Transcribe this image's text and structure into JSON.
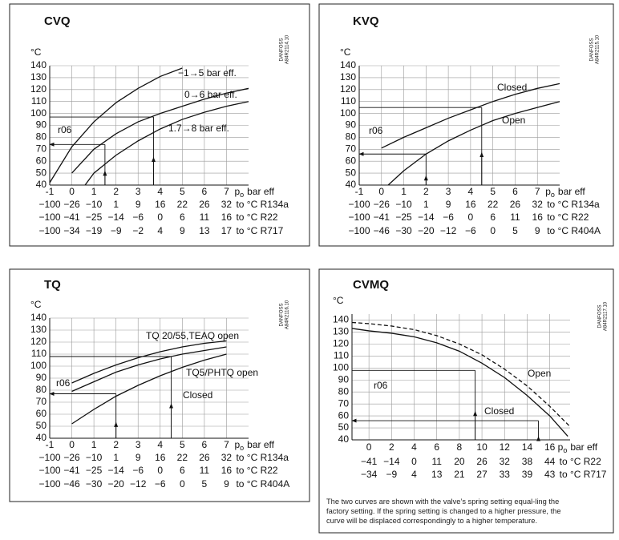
{
  "chart_data": [
    {
      "type": "line",
      "title": "CVQ",
      "ylabel": "°C",
      "xlabel": {
        "symbol": "p",
        "subscript": "o",
        "text": "bar eff"
      },
      "code": [
        "DANFOSS",
        "A84R2114.10"
      ],
      "xlim": [
        -1,
        8
      ],
      "xticks": [
        -1,
        0,
        1,
        2,
        3,
        4,
        5,
        6,
        7
      ],
      "ylim": [
        40,
        140
      ],
      "yticks": [
        40,
        50,
        60,
        70,
        80,
        90,
        100,
        110,
        120,
        130,
        140
      ],
      "grid": true,
      "series": [
        {
          "name": "−1→5 bar eff.",
          "color": "#111111",
          "x": [
            -1,
            0,
            1,
            2,
            3,
            4,
            5
          ],
          "values": [
            42,
            72,
            93,
            109,
            121,
            131,
            138
          ]
        },
        {
          "name": "0→6 bar eff.",
          "color": "#111111",
          "x": [
            0,
            1,
            2,
            3,
            4,
            5,
            6,
            7,
            8
          ],
          "values": [
            50,
            70,
            83,
            93,
            100,
            106,
            112,
            117,
            121
          ]
        },
        {
          "name": "1.7→8 bar eff.",
          "color": "#111111",
          "x": [
            0.6,
            1,
            2,
            3,
            4,
            5,
            6,
            7,
            8
          ],
          "values": [
            40,
            50,
            65,
            77,
            87,
            95,
            101,
            106,
            110
          ]
        }
      ],
      "annotation": "r06",
      "guides": [
        {
          "x": 3.7,
          "y": 97
        },
        {
          "x": 1.5,
          "y": 74
        }
      ],
      "scales": [
        {
          "labels": [
            "−100",
            "−26",
            "−10",
            "1",
            "9",
            "16",
            "22",
            "26",
            "32"
          ],
          "name": "to °C R134a"
        },
        {
          "labels": [
            "−100",
            "−41",
            "−25",
            "−14",
            "−6",
            "0",
            "6",
            "11",
            "16"
          ],
          "name": "to °C R22"
        },
        {
          "labels": [
            "−100",
            "−34",
            "−19",
            "−9",
            "−2",
            "4",
            "9",
            "13",
            "17"
          ],
          "name": "to °C R717"
        }
      ]
    },
    {
      "type": "line",
      "title": "KVQ",
      "ylabel": "°C",
      "xlabel": {
        "symbol": "p",
        "subscript": "o",
        "text": "bar eff"
      },
      "code": [
        "DANFOSS",
        "A84R2115.10"
      ],
      "xlim": [
        -1,
        8
      ],
      "xticks": [
        -1,
        0,
        1,
        2,
        3,
        4,
        5,
        6,
        7
      ],
      "ylim": [
        40,
        140
      ],
      "yticks": [
        40,
        50,
        60,
        70,
        80,
        90,
        100,
        110,
        120,
        130,
        140
      ],
      "grid": true,
      "series": [
        {
          "name": "Closed",
          "color": "#111111",
          "x": [
            0,
            1,
            2,
            3,
            4,
            5,
            6,
            7,
            8
          ],
          "values": [
            71,
            80,
            88,
            96,
            103,
            110,
            116,
            121,
            125
          ]
        },
        {
          "name": "Open",
          "color": "#111111",
          "x": [
            0.3,
            1,
            2,
            3,
            4,
            5,
            6,
            7,
            8
          ],
          "values": [
            40,
            52,
            66,
            77,
            86,
            94,
            100,
            105,
            110
          ]
        }
      ],
      "annotation": "r06",
      "guides": [
        {
          "x": 4.5,
          "y": 105
        },
        {
          "x": 2,
          "y": 66
        }
      ],
      "scales": [
        {
          "labels": [
            "−100",
            "−26",
            "−10",
            "1",
            "9",
            "16",
            "22",
            "26",
            "32"
          ],
          "name": "to °C R134a"
        },
        {
          "labels": [
            "−100",
            "−41",
            "−25",
            "−14",
            "−6",
            "0",
            "6",
            "11",
            "16"
          ],
          "name": "to °C R22"
        },
        {
          "labels": [
            "−100",
            "−46",
            "−30",
            "−20",
            "−12",
            "−6",
            "0",
            "5",
            "9"
          ],
          "name": "to °C R404A"
        }
      ]
    },
    {
      "type": "line",
      "title": "TQ",
      "ylabel": "°C",
      "xlabel": {
        "symbol": "p",
        "subscript": "o",
        "text": "bar eff"
      },
      "code": [
        "DANFOSS",
        "A84R2116.10"
      ],
      "xlim": [
        -1,
        8
      ],
      "xticks": [
        -1,
        0,
        1,
        2,
        3,
        4,
        5,
        6,
        7
      ],
      "ylim": [
        40,
        140
      ],
      "yticks": [
        40,
        50,
        60,
        70,
        80,
        90,
        100,
        110,
        120,
        130,
        140
      ],
      "grid": true,
      "series": [
        {
          "name": "TQ 20/55,TEAQ open",
          "color": "#111111",
          "x": [
            0,
            1,
            2,
            3,
            4,
            5,
            6,
            7
          ],
          "values": [
            86,
            94,
            101,
            107,
            112,
            116,
            119,
            121
          ]
        },
        {
          "name": "TQ5/PHTQ open",
          "color": "#111111",
          "x": [
            0,
            1,
            2,
            3,
            4,
            5,
            6,
            7
          ],
          "values": [
            79,
            87,
            95,
            101,
            106,
            110,
            113,
            116
          ]
        },
        {
          "name": "Closed",
          "color": "#111111",
          "x": [
            0,
            1,
            2,
            3,
            4,
            5,
            6,
            7
          ],
          "values": [
            52,
            64,
            75,
            84,
            92,
            99,
            105,
            110
          ]
        }
      ],
      "annotation": "r06",
      "guides": [
        {
          "x": 4.5,
          "y": 108
        },
        {
          "x": 2,
          "y": 77
        }
      ],
      "scales": [
        {
          "labels": [
            "−100",
            "−26",
            "−10",
            "1",
            "9",
            "16",
            "22",
            "26",
            "32"
          ],
          "name": "to °C R134a"
        },
        {
          "labels": [
            "−100",
            "−41",
            "−25",
            "−14",
            "−6",
            "0",
            "6",
            "11",
            "16"
          ],
          "name": "to °C R22"
        },
        {
          "labels": [
            "−100",
            "−46",
            "−30",
            "−20",
            "−12",
            "−6",
            "0",
            "5",
            "9"
          ],
          "name": "to °C R404A"
        }
      ]
    },
    {
      "type": "line",
      "title": "CVMQ",
      "ylabel": "°C",
      "xlabel": {
        "symbol": "p",
        "subscript": "o",
        "text": "bar eff"
      },
      "code": [
        "DANFOSS",
        "A84R2117.10"
      ],
      "xlim": [
        -1.5,
        17.8
      ],
      "xticks": [
        0,
        2,
        4,
        6,
        8,
        10,
        12,
        14,
        16
      ],
      "ylim": [
        40,
        145
      ],
      "yticks": [
        40,
        50,
        60,
        70,
        80,
        90,
        100,
        110,
        120,
        130,
        140
      ],
      "grid": true,
      "series": [
        {
          "name": "Open",
          "color": "#111111",
          "dash": true,
          "x": [
            -1.5,
            0,
            2,
            4,
            6,
            8,
            10,
            12,
            14,
            16,
            17.8
          ],
          "values": [
            138,
            137,
            135,
            132,
            127,
            120,
            111,
            99,
            85,
            68,
            51
          ]
        },
        {
          "name": "Closed",
          "color": "#111111",
          "dash": false,
          "x": [
            -1.5,
            0,
            2,
            4,
            6,
            8,
            10,
            12,
            14,
            16,
            17.6
          ],
          "values": [
            133,
            131,
            129,
            126,
            121,
            114,
            104,
            92,
            77,
            60,
            43
          ]
        }
      ],
      "annotation": "r06",
      "guides": [
        {
          "x": 9.4,
          "y": 98
        },
        {
          "x": 15,
          "y": 56
        }
      ],
      "scales": [
        {
          "labels": [
            "−41",
            "−14",
            "0",
            "11",
            "20",
            "26",
            "32",
            "38",
            "44"
          ],
          "name": "to °C R22"
        },
        {
          "labels": [
            "−34",
            "−9",
            "4",
            "13",
            "21",
            "27",
            "33",
            "39",
            "43"
          ],
          "name": "to °C R717"
        }
      ],
      "note": [
        "The two curves are shown with the valve’s spring setting equal-ling the",
        "factory setting. If the spring setting is changed to a higher pressure, the",
        "curve will be displaced correspondingly to a higher temperature."
      ]
    }
  ]
}
